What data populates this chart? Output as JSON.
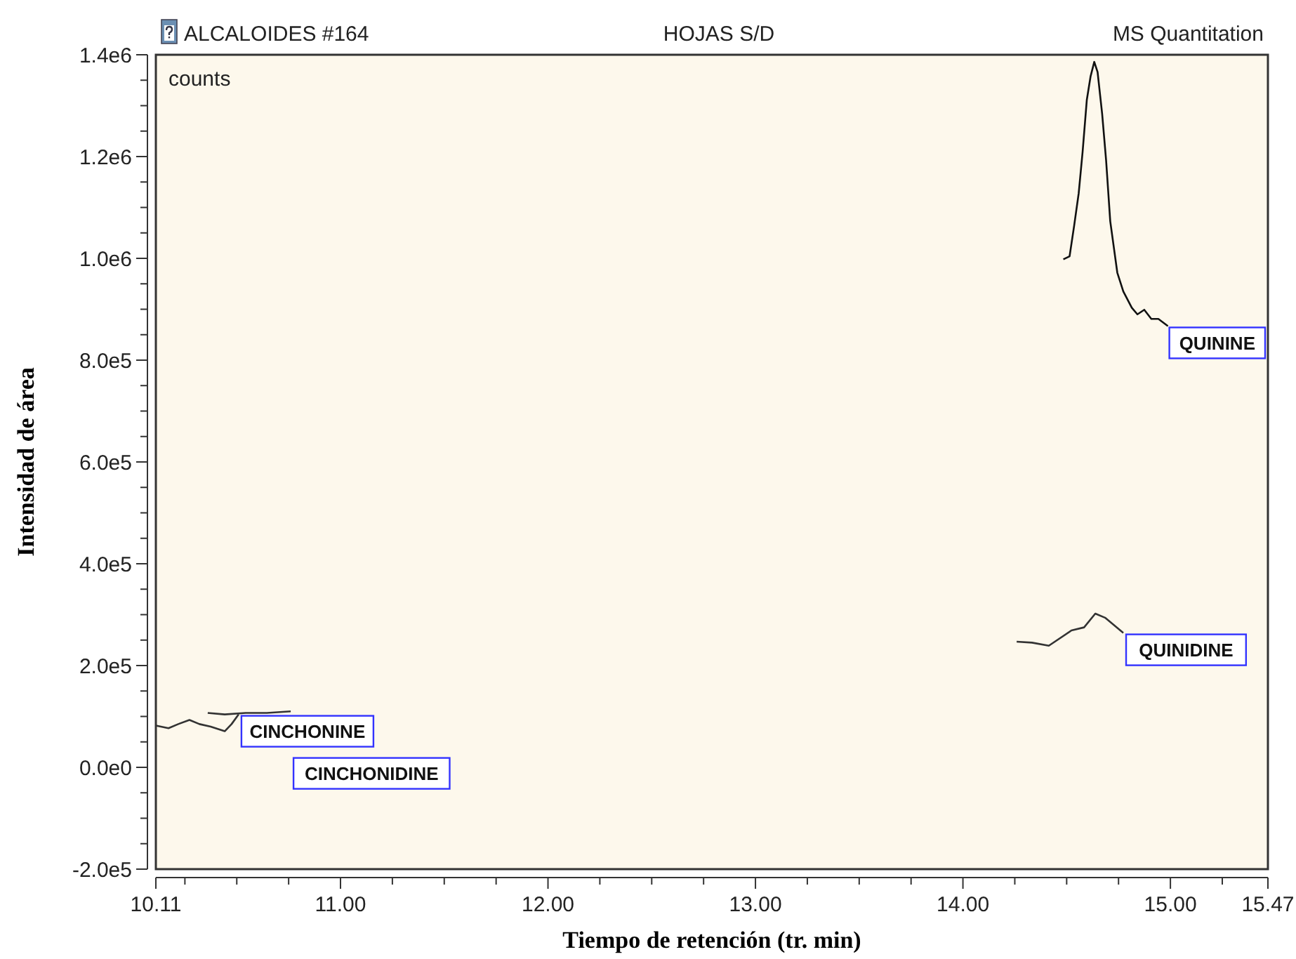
{
  "chart_data": {
    "type": "line",
    "title": "ALCALOIDES #164",
    "subtitle": "HOJAS S/D",
    "xlabel": "Tiempo de retención (tr. min)",
    "ylabel": "Intensidad de área",
    "annotations": [
      "MS Quantitation",
      "counts"
    ],
    "xlim": [
      10.11,
      15.47
    ],
    "ylim": [
      -200000,
      1400000
    ],
    "xticks": [
      {
        "value": 10.11,
        "label": "10.11"
      },
      {
        "value": 10.25,
        "label": null
      },
      {
        "value": 10.5,
        "label": null
      },
      {
        "value": 10.75,
        "label": null
      },
      {
        "value": 11,
        "label": "11.00"
      },
      {
        "value": 11.25,
        "label": null
      },
      {
        "value": 11.5,
        "label": null
      },
      {
        "value": 11.75,
        "label": null
      },
      {
        "value": 12,
        "label": "12.00"
      },
      {
        "value": 12.25,
        "label": null
      },
      {
        "value": 12.5,
        "label": null
      },
      {
        "value": 12.75,
        "label": null
      },
      {
        "value": 13,
        "label": "13.00"
      },
      {
        "value": 13.25,
        "label": null
      },
      {
        "value": 13.5,
        "label": null
      },
      {
        "value": 13.75,
        "label": null
      },
      {
        "value": 14,
        "label": "14.00"
      },
      {
        "value": 14.25,
        "label": null
      },
      {
        "value": 14.5,
        "label": null
      },
      {
        "value": 14.75,
        "label": null
      },
      {
        "value": 15,
        "label": "15.00"
      },
      {
        "value": 15.25,
        "label": null
      },
      {
        "value": 15.47,
        "label": "15.47"
      }
    ],
    "yticks": [
      {
        "value": -200000,
        "label": "-2.0e5"
      },
      {
        "value": -150000,
        "label": null
      },
      {
        "value": -100000,
        "label": null
      },
      {
        "value": -50000,
        "label": null
      },
      {
        "value": 0,
        "label": "0.0e0"
      },
      {
        "value": 50000,
        "label": null
      },
      {
        "value": 100000,
        "label": null
      },
      {
        "value": 150000,
        "label": null
      },
      {
        "value": 200000,
        "label": "2.0e5"
      },
      {
        "value": 250000,
        "label": null
      },
      {
        "value": 300000,
        "label": null
      },
      {
        "value": 350000,
        "label": null
      },
      {
        "value": 400000,
        "label": "4.0e5"
      },
      {
        "value": 450000,
        "label": null
      },
      {
        "value": 500000,
        "label": null
      },
      {
        "value": 550000,
        "label": null
      },
      {
        "value": 600000,
        "label": "6.0e5"
      },
      {
        "value": 650000,
        "label": null
      },
      {
        "value": 700000,
        "label": null
      },
      {
        "value": 750000,
        "label": null
      },
      {
        "value": 800000,
        "label": "8.0e5"
      },
      {
        "value": 850000,
        "label": null
      },
      {
        "value": 900000,
        "label": null
      },
      {
        "value": 950000,
        "label": null
      },
      {
        "value": 1000000,
        "label": "1.0e6"
      },
      {
        "value": 1050000,
        "label": null
      },
      {
        "value": 1100000,
        "label": null
      },
      {
        "value": 1150000,
        "label": null
      },
      {
        "value": 1200000,
        "label": "1.2e6"
      },
      {
        "value": 1250000,
        "label": null
      },
      {
        "value": 1300000,
        "label": null
      },
      {
        "value": 1350000,
        "label": null
      },
      {
        "value": 1400000,
        "label": "1.4e6"
      }
    ],
    "grid": false,
    "line_style": "solid",
    "series": [
      {
        "name": "CINCHONINE",
        "color": "#333333",
        "x": [
          10.11,
          10.171,
          10.218,
          10.272,
          10.32,
          10.374,
          10.442,
          10.475,
          10.509
        ],
        "values": [
          82000,
          77000,
          85000,
          93000,
          85000,
          80000,
          71000,
          85000,
          104000
        ]
      },
      {
        "name": "CINCHONIDINE",
        "color": "#333333",
        "x": [
          10.36,
          10.442,
          10.543,
          10.645,
          10.76
        ],
        "values": [
          107000,
          104000,
          107000,
          107000,
          110000
        ]
      },
      {
        "name": "QUININE",
        "color": "#111111",
        "x": [
          14.484,
          14.514,
          14.536,
          14.558,
          14.577,
          14.597,
          14.615,
          14.633,
          14.649,
          14.671,
          14.69,
          14.71,
          14.744,
          14.773,
          14.814,
          14.841,
          14.874,
          14.908,
          14.942,
          14.988
        ],
        "values": [
          998000,
          1004000,
          1064000,
          1128000,
          1210000,
          1311000,
          1357000,
          1386000,
          1366000,
          1284000,
          1193000,
          1073000,
          972000,
          935000,
          903000,
          890000,
          899000,
          881000,
          881000,
          867000
        ]
      },
      {
        "name": "QUINIDINE",
        "color": "#333333",
        "x": [
          14.259,
          14.333,
          14.414,
          14.523,
          14.584,
          14.638,
          14.685,
          14.773
        ],
        "values": [
          247000,
          245000,
          239000,
          269000,
          275000,
          302000,
          294000,
          264000
        ]
      }
    ]
  }
}
